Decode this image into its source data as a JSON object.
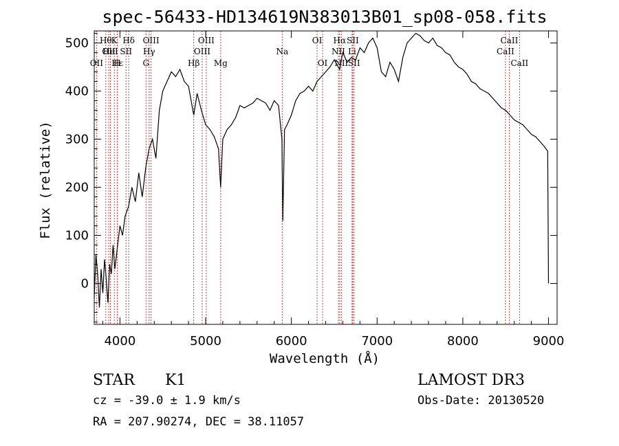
{
  "chart_data": {
    "type": "line",
    "title": "spec-56433-HD134619N383013B01_sp08-058.fits",
    "xlabel": "Wavelength (Å)",
    "ylabel": "Flux (relative)",
    "xlim": [
      3700,
      9100
    ],
    "ylim": [
      -85,
      525
    ],
    "xticks": [
      4000,
      5000,
      6000,
      7000,
      8000,
      9000
    ],
    "yticks": [
      0,
      100,
      200,
      300,
      400,
      500
    ],
    "grid": false,
    "line_color": "#000000",
    "marker_color": "#c83c3c",
    "series": [
      {
        "x": [
          3700,
          3720,
          3740,
          3760,
          3780,
          3800,
          3820,
          3840,
          3860,
          3880,
          3900,
          3920,
          3940,
          3960,
          3980,
          4000,
          4030,
          4060,
          4100,
          4140,
          4180,
          4220,
          4260,
          4300,
          4340,
          4380,
          4420,
          4460,
          4500,
          4550,
          4600,
          4650,
          4700,
          4750,
          4800,
          4861,
          4900,
          4950,
          5000,
          5050,
          5100,
          5150,
          5175,
          5200,
          5250,
          5300,
          5350,
          5400,
          5450,
          5500,
          5550,
          5600,
          5650,
          5700,
          5750,
          5800,
          5850,
          5890,
          5900,
          5920,
          5950,
          6000,
          6050,
          6100,
          6150,
          6200,
          6250,
          6300,
          6350,
          6400,
          6450,
          6500,
          6563,
          6600,
          6650,
          6700,
          6750,
          6800,
          6850,
          6900,
          6950,
          7000,
          7050,
          7100,
          7150,
          7200,
          7250,
          7300,
          7350,
          7400,
          7450,
          7500,
          7550,
          7600,
          7650,
          7700,
          7750,
          7800,
          7850,
          7900,
          7950,
          8000,
          8050,
          8100,
          8150,
          8200,
          8250,
          8300,
          8350,
          8400,
          8450,
          8500,
          8550,
          8600,
          8650,
          8700,
          8750,
          8800,
          8850,
          8900,
          8950,
          8990,
          9000
        ],
        "y": [
          -30,
          60,
          20,
          -50,
          30,
          -20,
          50,
          10,
          -40,
          40,
          20,
          80,
          30,
          60,
          90,
          120,
          100,
          140,
          160,
          200,
          170,
          230,
          180,
          240,
          280,
          300,
          260,
          360,
          400,
          420,
          440,
          430,
          445,
          420,
          410,
          350,
          395,
          360,
          330,
          320,
          305,
          280,
          200,
          300,
          320,
          330,
          345,
          370,
          365,
          370,
          375,
          385,
          380,
          375,
          360,
          380,
          370,
          300,
          130,
          320,
          330,
          350,
          380,
          395,
          400,
          410,
          400,
          420,
          430,
          440,
          450,
          465,
          445,
          480,
          460,
          470,
          465,
          490,
          480,
          500,
          510,
          490,
          440,
          430,
          460,
          445,
          420,
          470,
          500,
          510,
          520,
          515,
          505,
          500,
          510,
          495,
          490,
          480,
          475,
          460,
          450,
          445,
          435,
          420,
          415,
          405,
          400,
          395,
          385,
          375,
          365,
          360,
          350,
          340,
          335,
          330,
          320,
          310,
          305,
          295,
          285,
          275,
          0
        ]
      }
    ],
    "line_markers": [
      {
        "wavelength": 3835,
        "label": "Hθ",
        "row": 1
      },
      {
        "wavelength": 3869,
        "label": "OII",
        "row": 2
      },
      {
        "wavelength": 3889,
        "label": "HeI",
        "row": 2
      },
      {
        "wavelength": 3934,
        "label": "K",
        "row": 1
      },
      {
        "wavelength": 3968,
        "label": "H",
        "row": 3
      },
      {
        "wavelength": 3727,
        "label": "OII",
        "row": 3
      },
      {
        "wavelength": 4071,
        "label": "SII",
        "row": 2
      },
      {
        "wavelength": 4102,
        "label": "Hδ",
        "row": 1
      },
      {
        "wavelength": 3970,
        "label": "Hε",
        "row": 3
      },
      {
        "wavelength": 4304,
        "label": "G",
        "row": 3
      },
      {
        "wavelength": 4340,
        "label": "Hγ",
        "row": 2
      },
      {
        "wavelength": 4363,
        "label": "OIII",
        "row": 1
      },
      {
        "wavelength": 4861,
        "label": "Hβ",
        "row": 3
      },
      {
        "wavelength": 4959,
        "label": "OIII",
        "row": 2
      },
      {
        "wavelength": 5007,
        "label": "OIII",
        "row": 1
      },
      {
        "wavelength": 5175,
        "label": "Mg",
        "row": 3
      },
      {
        "wavelength": 5893,
        "label": "Na",
        "row": 2
      },
      {
        "wavelength": 6300,
        "label": "OI",
        "row": 1
      },
      {
        "wavelength": 6364,
        "label": "OI",
        "row": 3
      },
      {
        "wavelength": 6548,
        "label": "NII",
        "row": 2
      },
      {
        "wavelength": 6563,
        "label": "Hα",
        "row": 1
      },
      {
        "wavelength": 6583,
        "label": "NII",
        "row": 3
      },
      {
        "wavelength": 6708,
        "label": "Li",
        "row": 2
      },
      {
        "wavelength": 6716,
        "label": "SII",
        "row": 1
      },
      {
        "wavelength": 6731,
        "label": "SII",
        "row": 3
      },
      {
        "wavelength": 8498,
        "label": "CaII",
        "row": 2
      },
      {
        "wavelength": 8542,
        "label": "CaII",
        "row": 1
      },
      {
        "wavelength": 8662,
        "label": "CaII",
        "row": 3
      }
    ]
  },
  "info": {
    "object_class": "STAR",
    "subclass": "K1",
    "survey": "LAMOST DR3",
    "cz_text": "cz = -39.0 ± 1.9 km/s",
    "obs_date": "Obs-Date: 20130520",
    "radec_text": "RA = 207.90274, DEC =  38.11057"
  }
}
